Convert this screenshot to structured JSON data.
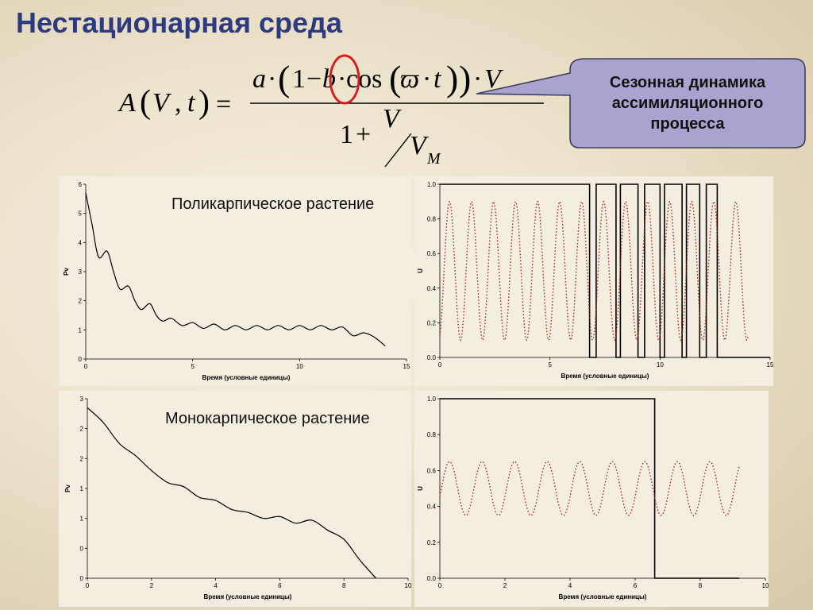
{
  "title": "Нестационарная среда",
  "formula": {
    "lhs_A": "A",
    "lhs_V": "V",
    "lhs_comma": ",",
    "lhs_t": "t",
    "eq": "=",
    "num_a": "a",
    "num_dot1": "·",
    "num_one": "1",
    "num_minus": "−",
    "num_b": "b",
    "num_dot2": "·",
    "num_cos": "cos",
    "num_omega": "ϖ",
    "num_dot3": "·",
    "num_t": "t",
    "num_dot4": "·",
    "num_V": "V",
    "den_one": "1",
    "den_plus": "+",
    "den_V": "V",
    "den_VM": "V",
    "den_M": "M"
  },
  "callout": {
    "text": "Сезонная динамика ассимиляционного процесса",
    "fill": "#a9a4cf",
    "border": "#3e3e5a"
  },
  "highlight_color": "#d42020",
  "labels": {
    "polycarpic": "Поликарпическое растение",
    "monocarpic": "Монокарпическое растение"
  },
  "chart_data": [
    {
      "id": "pv-poly",
      "type": "line",
      "xlabel": "Время (условные единицы)",
      "ylabel": "Pv",
      "xlim": [
        0,
        15
      ],
      "ylim": [
        0,
        6
      ],
      "xticks": [
        "0",
        "5",
        "10",
        "15"
      ],
      "yticks": [
        "0",
        "1",
        "2",
        "3",
        "4",
        "5",
        "6"
      ],
      "series": [
        {
          "color": "#000000",
          "style": "solid",
          "x": [
            0,
            0.3,
            0.6,
            1.0,
            1.3,
            1.6,
            2.0,
            2.3,
            2.6,
            3.0,
            3.3,
            3.6,
            4.0,
            4.5,
            5.0,
            5.5,
            6.0,
            6.5,
            7.0,
            7.5,
            8.0,
            8.5,
            9.0,
            9.5,
            10.0,
            10.5,
            11.0,
            11.5,
            12.0,
            12.5,
            13.0,
            13.5,
            14.0
          ],
          "y": [
            5.7,
            4.6,
            3.5,
            3.7,
            3.0,
            2.4,
            2.5,
            2.0,
            1.7,
            1.9,
            1.5,
            1.3,
            1.4,
            1.15,
            1.25,
            1.05,
            1.2,
            1.0,
            1.15,
            1.0,
            1.15,
            1.0,
            1.15,
            1.0,
            1.15,
            1.0,
            1.15,
            1.0,
            1.1,
            0.8,
            0.9,
            0.75,
            0.45
          ]
        }
      ]
    },
    {
      "id": "u-poly",
      "type": "line",
      "xlabel": "Время (условные единицы)",
      "ylabel": "U",
      "xlim": [
        0,
        15
      ],
      "ylim": [
        0,
        1.0
      ],
      "xticks": [
        "0",
        "5",
        "10",
        "15"
      ],
      "yticks": [
        "0.0",
        "0.2",
        "0.4",
        "0.6",
        "0.8",
        "1.0"
      ],
      "series": [
        {
          "color": "#000000",
          "style": "step",
          "x": [
            0,
            6.8,
            6.8,
            7.1,
            7.1,
            8.0,
            8.0,
            8.2,
            8.2,
            9.0,
            9.0,
            9.3,
            9.3,
            10.0,
            10.0,
            10.2,
            10.2,
            11.0,
            11.0,
            11.2,
            11.2,
            11.8,
            11.8,
            12.1,
            12.1,
            12.6,
            12.6,
            12.9,
            12.9,
            15
          ],
          "y": [
            1.0,
            1.0,
            0.0,
            0.0,
            1.0,
            1.0,
            0.0,
            0.0,
            1.0,
            1.0,
            0.0,
            0.0,
            1.0,
            1.0,
            0.0,
            0.0,
            1.0,
            1.0,
            0.0,
            0.0,
            1.0,
            1.0,
            0.0,
            0.0,
            1.0,
            1.0,
            0.0,
            0.0,
            0.0,
            0.0
          ]
        },
        {
          "color": "#b21e1e",
          "style": "dotted",
          "wave": {
            "x_start": 0,
            "x_end": 14,
            "mean": 0.5,
            "amplitude": 0.4,
            "period": 1.0,
            "phase": -1.2
          }
        }
      ]
    },
    {
      "id": "pv-mono",
      "type": "line",
      "xlabel": "Время (условные единицы)",
      "ylabel": "Pv",
      "xlim": [
        0,
        10
      ],
      "ylim": [
        0,
        3
      ],
      "xticks": [
        "0",
        "2",
        "4",
        "6",
        "8",
        "10"
      ],
      "yticks": [
        "0",
        "0",
        "1",
        "1",
        "2",
        "2",
        "3"
      ],
      "series": [
        {
          "color": "#000000",
          "style": "solid",
          "x": [
            0,
            0.5,
            1.0,
            1.5,
            2.0,
            2.5,
            3.0,
            3.5,
            4.0,
            4.5,
            5.0,
            5.5,
            6.0,
            6.5,
            7.0,
            7.5,
            8.0,
            8.5,
            9.0
          ],
          "y": [
            2.85,
            2.6,
            2.25,
            2.05,
            1.8,
            1.6,
            1.53,
            1.35,
            1.3,
            1.15,
            1.1,
            1.0,
            1.03,
            0.92,
            0.97,
            0.8,
            0.65,
            0.3,
            0.0
          ]
        }
      ]
    },
    {
      "id": "u-mono",
      "type": "line",
      "xlabel": "Время (условные единицы)",
      "ylabel": "U",
      "xlim": [
        0,
        10
      ],
      "ylim": [
        0,
        1.0
      ],
      "xticks": [
        "0",
        "2",
        "4",
        "6",
        "8",
        "10"
      ],
      "yticks": [
        "0.0",
        "0.2",
        "0.4",
        "0.6",
        "0.8",
        "1.0"
      ],
      "series": [
        {
          "color": "#000000",
          "style": "step",
          "x": [
            0,
            6.6,
            6.6,
            9.2
          ],
          "y": [
            1.0,
            1.0,
            0.0,
            0.0
          ]
        },
        {
          "color": "#b21e1e",
          "style": "dotted",
          "wave": {
            "x_start": 0,
            "x_end": 9.2,
            "mean": 0.5,
            "amplitude": 0.15,
            "period": 1.0,
            "phase": -0.3
          }
        }
      ]
    }
  ]
}
